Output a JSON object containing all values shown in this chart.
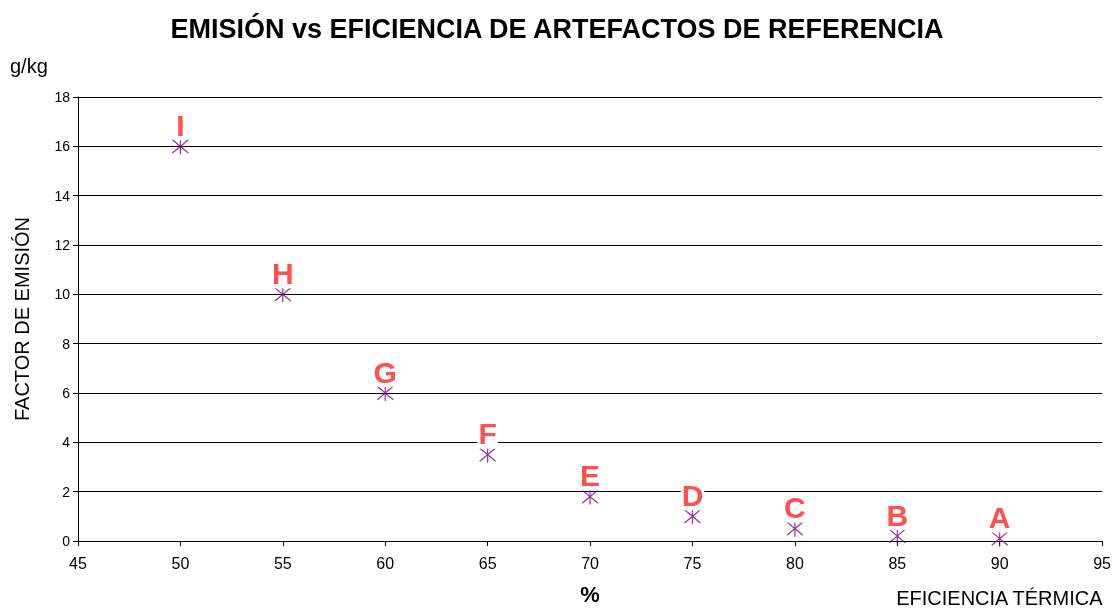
{
  "chart_data": {
    "type": "scatter",
    "title": "EMISIÓN vs EFICIENCIA DE ARTEFACTOS DE REFERENCIA",
    "xlabel": "%",
    "ylabel": "FACTOR DE EMISIÓN",
    "x": [
      50,
      55,
      60,
      65,
      70,
      75,
      80,
      85,
      90
    ],
    "series": [
      {
        "color": "#800080",
        "values": [
          16,
          10,
          6,
          3.5,
          1.8,
          1.0,
          0.5,
          0.2,
          0.1
        ]
      }
    ],
    "xlim": [
      45,
      95
    ],
    "xticks": [
      45,
      50,
      55,
      60,
      65,
      70,
      75,
      80,
      85,
      90,
      95
    ],
    "ylim": [
      0,
      18
    ],
    "yticks": [
      0,
      2,
      4,
      6,
      8,
      10,
      12,
      14,
      16,
      18
    ],
    "grid": "y",
    "marker": "cross",
    "annotations": [
      "g/kg",
      "EFICIENCIA TÉRMICA",
      {
        "text": "I",
        "x": 50,
        "y": 16
      },
      {
        "text": "H",
        "x": 55,
        "y": 10
      },
      {
        "text": "G",
        "x": 60,
        "y": 6
      },
      {
        "text": "F",
        "x": 65,
        "y": 3.5
      },
      {
        "text": "E",
        "x": 70,
        "y": 1.8
      },
      {
        "text": "D",
        "x": 75,
        "y": 1.0
      },
      {
        "text": "C",
        "x": 80,
        "y": 0.5
      },
      {
        "text": "B",
        "x": 85,
        "y": 0.2
      },
      {
        "text": "A",
        "x": 90,
        "y": 0.1
      }
    ]
  }
}
